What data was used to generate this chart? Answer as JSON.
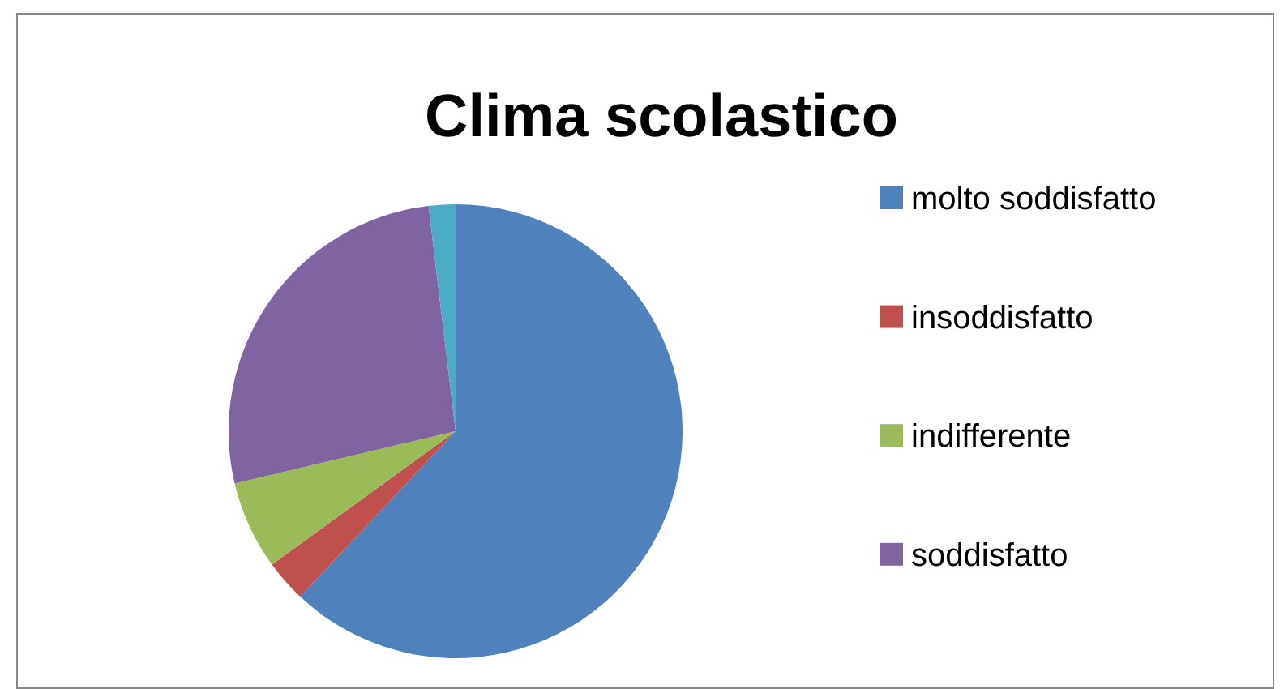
{
  "chart_data": {
    "type": "pie",
    "title": "Clima scolastico",
    "categories": [
      "molto soddisfatto",
      "insoddisfatto",
      "indifferente",
      "soddisfatto",
      null
    ],
    "values": [
      62,
      3,
      6.3,
      26.8,
      1.9
    ],
    "colors": [
      "#4f81bd",
      "#c0504d",
      "#9bbb59",
      "#8064a2",
      "#4bacc6"
    ],
    "legend": "right"
  }
}
